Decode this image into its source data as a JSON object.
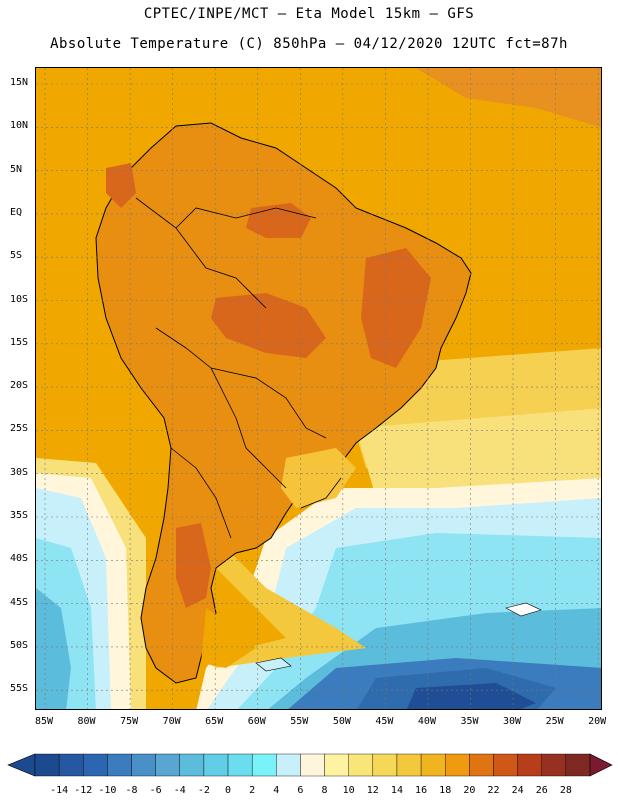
{
  "header": {
    "line1": "CPTEC/INPE/MCT –  Eta Model 15km – GFS",
    "line2": "Absolute Temperature (C) 850hPa – 04/12/2020 12UTC fct=87h"
  },
  "map": {
    "lat_labels": [
      "15N",
      "10N",
      "5N",
      "EQ",
      "5S",
      "10S",
      "15S",
      "20S",
      "25S",
      "30S",
      "35S",
      "40S",
      "45S",
      "50S",
      "55S"
    ],
    "lon_labels": [
      "85W",
      "80W",
      "75W",
      "70W",
      "65W",
      "60W",
      "55W",
      "50W",
      "45W",
      "40W",
      "35W",
      "30W",
      "25W",
      "20W"
    ],
    "colors": {
      "ocean_warm": "#f0a800",
      "land_warm": "#e88e10",
      "hot": "#d8671c",
      "cool_land": "#f6c43a",
      "mild": "#f6e070",
      "pale": "#fff6dc",
      "cyan_light": "#c8f0fa",
      "cyan": "#8ee4f2",
      "blue_mid": "#5cbcdc",
      "blue_dark": "#2e6cae",
      "blue_deep": "#1f4e96"
    }
  },
  "colorbar": {
    "labels": [
      "-14",
      "-12",
      "-10",
      "-8",
      "-6",
      "-4",
      "-2",
      "0",
      "2",
      "4",
      "6",
      "8",
      "10",
      "12",
      "14",
      "16",
      "18",
      "20",
      "22",
      "24",
      "26",
      "28"
    ],
    "colors": [
      "#1c4a8f",
      "#2558a0",
      "#2d66b0",
      "#3a7cbe",
      "#4a90c8",
      "#5aa6d2",
      "#5cbcdc",
      "#62cde6",
      "#6cdcef",
      "#7af2f9",
      "#c8f0fa",
      "#fff4dc",
      "#fdf3a0",
      "#f8e67a",
      "#f6d858",
      "#f4c83c",
      "#f0b420",
      "#ef9a10",
      "#e07412",
      "#cf5818",
      "#b63e1a",
      "#963020",
      "#7e2a22"
    ]
  }
}
